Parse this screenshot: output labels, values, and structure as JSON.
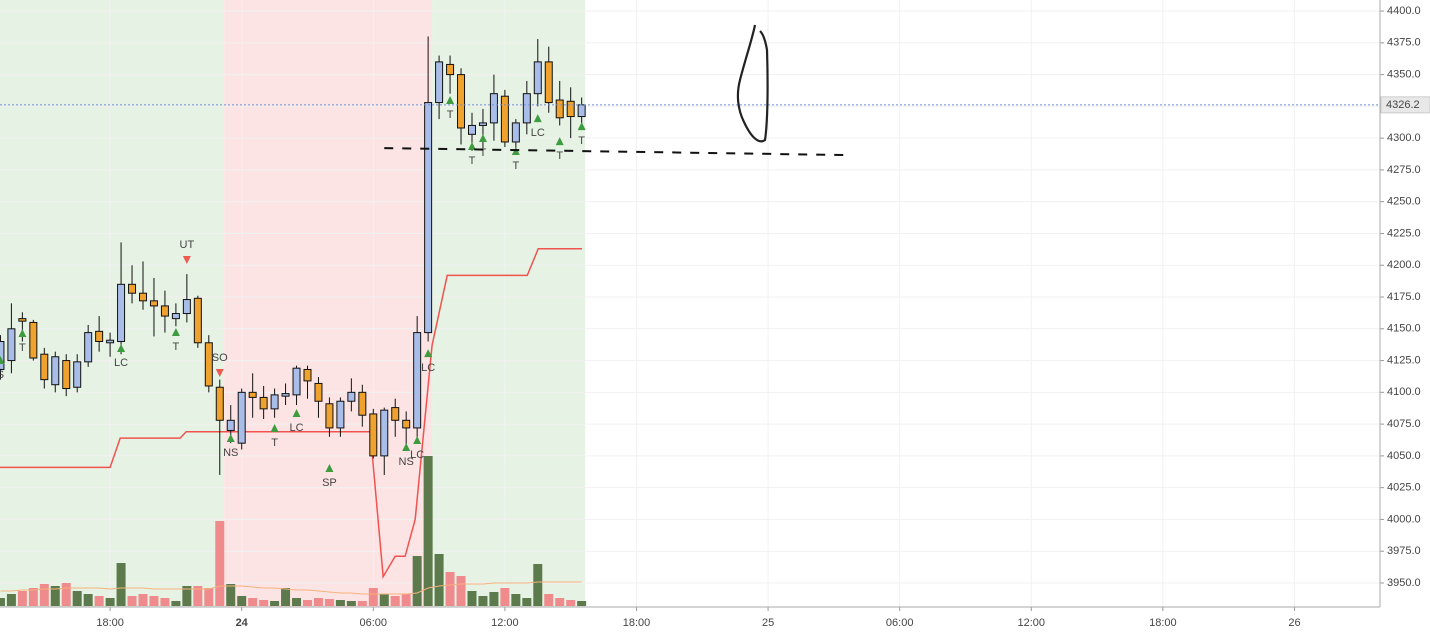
{
  "chart_data": {
    "type": "candlestick",
    "x": [
      13,
      13.5,
      14,
      14.5,
      15,
      15.5,
      16,
      16.5,
      17,
      17.5,
      18,
      18.5,
      19,
      19.5,
      20,
      20.5,
      21,
      21.5,
      22,
      22.5,
      23,
      23.5,
      24,
      24.5,
      25,
      25.5,
      26,
      26.5,
      27,
      27.5,
      28,
      28.5,
      29,
      29.5,
      30,
      30.5,
      31,
      31.5,
      32,
      32.5,
      33,
      33.5,
      34,
      34.5,
      35,
      35.5,
      36,
      36.5,
      37,
      37.5,
      38,
      38.5,
      39,
      39.5
    ],
    "open": [
      4118,
      4125,
      4158,
      4155,
      4130,
      4106,
      4125,
      4104,
      4124,
      4148,
      4139,
      4140,
      4185,
      4178,
      4172,
      4168,
      4158,
      4162,
      4174,
      4139,
      4104,
      4070,
      4060,
      4100,
      4096,
      4087,
      4097,
      4098,
      4118,
      4107,
      4091,
      4072,
      4093,
      4100,
      4083,
      4050,
      4088,
      4078,
      4072,
      4147,
      4328,
      4358,
      4350,
      4303,
      4310,
      4312,
      4333,
      4297,
      4312,
      4335,
      4360,
      4330,
      4329,
      4317
    ],
    "high": [
      4145,
      4170,
      4163,
      4157,
      4135,
      4132,
      4130,
      4130,
      4153,
      4160,
      4147,
      4218,
      4200,
      4203,
      4190,
      4180,
      4170,
      4193,
      4176,
      4145,
      4110,
      4090,
      4103,
      4115,
      4105,
      4103,
      4107,
      4121,
      4121,
      4112,
      4096,
      4096,
      4111,
      4106,
      4087,
      4088,
      4095,
      4085,
      4160,
      4380,
      4365,
      4365,
      4355,
      4320,
      4323,
      4350,
      4338,
      4315,
      4345,
      4378,
      4372,
      4345,
      4340,
      4332
    ],
    "low": [
      4110,
      4115,
      4140,
      4125,
      4103,
      4100,
      4097,
      4100,
      4120,
      4132,
      4128,
      4130,
      4170,
      4165,
      4144,
      4147,
      4152,
      4155,
      4135,
      4100,
      4035,
      4060,
      4055,
      4080,
      4079,
      4080,
      4090,
      4090,
      4095,
      4080,
      4065,
      4065,
      4085,
      4073,
      4048,
      4035,
      4065,
      4058,
      4060,
      4140,
      4315,
      4335,
      4295,
      4290,
      4292,
      4298,
      4293,
      4290,
      4303,
      4325,
      4320,
      4310,
      4300,
      4310
    ],
    "close": [
      4140,
      4150,
      4156,
      4127,
      4110,
      4128,
      4103,
      4124,
      4147,
      4140,
      4141,
      4185,
      4178,
      4172,
      4168,
      4160,
      4162,
      4173,
      4139,
      4105,
      4078,
      4078,
      4100,
      4096,
      4087,
      4098,
      4099,
      4119,
      4109,
      4093,
      4072,
      4093,
      4100,
      4082,
      4050,
      4086,
      4078,
      4072,
      4147,
      4328,
      4360,
      4350,
      4308,
      4310,
      4312,
      4335,
      4297,
      4312,
      4335,
      4360,
      4328,
      4316,
      4317,
      4326.2
    ],
    "volume": [
      8,
      12,
      15,
      18,
      22,
      20,
      23,
      15,
      12,
      10,
      8,
      43,
      10,
      12,
      10,
      8,
      5,
      20,
      20,
      18,
      85,
      22,
      10,
      8,
      6,
      5,
      18,
      8,
      6,
      8,
      7,
      6,
      5,
      5,
      18,
      12,
      10,
      12,
      50,
      150,
      52,
      34,
      30,
      15,
      10,
      14,
      18,
      12,
      8,
      42,
      12,
      8,
      6,
      5
    ],
    "volume_ma": [
      15,
      15,
      16,
      16,
      17,
      17,
      18,
      18,
      18,
      18,
      17,
      18,
      18,
      18,
      17,
      17,
      17,
      17,
      17,
      17,
      20,
      20,
      20,
      19,
      18,
      18,
      17,
      16,
      16,
      15,
      14,
      13,
      13,
      12,
      12,
      12,
      12,
      12,
      13,
      18,
      20,
      21,
      22,
      22,
      22,
      23,
      23,
      23,
      23,
      24,
      24,
      24,
      24,
      24
    ],
    "colors": {
      "up": "#a9bde9",
      "down": "#f0a22f",
      "vol_up": "#5c7a4c",
      "vol_down": "#ef8b8d",
      "vol_ma": "#f5b27e",
      "stop": "#ef5350",
      "last": "#6f8fd6"
    },
    "sessions": [
      {
        "from": 12.98,
        "to": 23.2,
        "color": "#e6f2e4"
      },
      {
        "from": 23.2,
        "to": 32.68,
        "color": "#fde4e4"
      },
      {
        "from": 32.68,
        "to": 39.66,
        "color": "#e6f2e4"
      }
    ],
    "stop_line": {
      "x": [
        12.98,
        18,
        18.46,
        21.19,
        21.47,
        29.86,
        30.45,
        31.0,
        31.45,
        31.91,
        32.68,
        33.37,
        37.02,
        37.52,
        39.52
      ],
      "y": [
        4041,
        4041,
        4064,
        4064,
        4069,
        4069,
        3955,
        3971,
        3971,
        4000,
        4137,
        4192,
        4192,
        4213,
        4213
      ]
    },
    "signals": [
      {
        "text": "S",
        "x": 13,
        "y": 4125.4,
        "dir": "up"
      },
      {
        "text": "T",
        "x": 14,
        "y": 4146.7,
        "dir": "up"
      },
      {
        "text": "LC",
        "x": 18.5,
        "y": 4134.9,
        "dir": "up"
      },
      {
        "text": "T",
        "x": 21,
        "y": 4147.5,
        "dir": "up"
      },
      {
        "text": "UT",
        "x": 21.5,
        "y": 4204.1,
        "dir": "down"
      },
      {
        "text": "SO",
        "x": 23,
        "y": 4115.2,
        "dir": "down"
      },
      {
        "text": "NS",
        "x": 23.5,
        "y": 4064.1,
        "dir": "up"
      },
      {
        "text": "T",
        "x": 25.5,
        "y": 4071.9,
        "dir": "up"
      },
      {
        "text": "LC",
        "x": 26.5,
        "y": 4083.7,
        "dir": "up"
      },
      {
        "text": "SP",
        "x": 28,
        "y": 4040.5,
        "dir": "up"
      },
      {
        "text": "NS",
        "x": 31.5,
        "y": 4057,
        "dir": "up"
      },
      {
        "text": "LC",
        "x": 32,
        "y": 4062.5,
        "dir": "up"
      },
      {
        "text": "LC",
        "x": 32.5,
        "y": 4130.9,
        "dir": "up"
      },
      {
        "text": "T",
        "x": 33.5,
        "y": 4330,
        "dir": "up"
      },
      {
        "text": "T",
        "x": 34.5,
        "y": 4293.8,
        "dir": "up"
      },
      {
        "text": "T",
        "x": 35,
        "y": 4300.1,
        "dir": "up"
      },
      {
        "text": "T",
        "x": 36.5,
        "y": 4289.9,
        "dir": "up"
      },
      {
        "text": "LC",
        "x": 37.5,
        "y": 4315.8,
        "dir": "up"
      },
      {
        "text": "T",
        "x": 38.5,
        "y": 4297.7,
        "dir": "up"
      },
      {
        "text": "T",
        "x": 39.5,
        "y": 4309.5,
        "dir": "up"
      }
    ],
    "drawing_line": {
      "x": [
        30.5,
        51.5
      ],
      "y": [
        4292.2,
        4286.7
      ]
    },
    "last_price": {
      "value": 4326.2,
      "label": "4326.2"
    },
    "xlim": [
      12.98,
      75.9
    ],
    "ylim": [
      3931.1,
      4408.7
    ],
    "xticks": [
      {
        "value": 18,
        "label": "18:00"
      },
      24,
      {
        "value": 30,
        "label": "06:00"
      },
      {
        "value": 36,
        "label": "12:00"
      },
      {
        "value": 42,
        "label": "18:00"
      },
      {
        "value": 48,
        "label": "25"
      },
      {
        "value": 54,
        "label": "06:00"
      },
      {
        "value": 60,
        "label": "12:00"
      },
      {
        "value": 66,
        "label": "18:00"
      },
      {
        "value": 72,
        "label": "26"
      }
    ],
    "yticks": [
      {
        "value": 3950,
        "label": "3950.0"
      },
      {
        "value": 3975,
        "label": "3975.0"
      },
      {
        "value": 4000,
        "label": "4000.0"
      },
      {
        "value": 4025,
        "label": "4025.0"
      },
      {
        "value": 4050,
        "label": "4050.0"
      },
      {
        "value": 4075,
        "label": "4075.0"
      },
      {
        "value": 4100,
        "label": "4100.0"
      },
      {
        "value": 4125,
        "label": "4125.0"
      },
      {
        "value": 4150,
        "label": "4150.0"
      },
      {
        "value": 4175,
        "label": "4175.0"
      },
      {
        "value": 4200,
        "label": "4200.0"
      },
      {
        "value": 4225,
        "label": "4225.0"
      },
      {
        "value": 4250,
        "label": "4250.0"
      },
      {
        "value": 4275,
        "label": "4275.0"
      },
      {
        "value": 4300,
        "label": "4300.0"
      },
      {
        "value": 4325,
        "label": "4325.0"
      },
      {
        "value": 4350,
        "label": "4350.0"
      },
      {
        "value": 4375,
        "label": "4375.0"
      },
      {
        "value": 4400,
        "label": "4400.0"
      }
    ],
    "grid": true
  }
}
